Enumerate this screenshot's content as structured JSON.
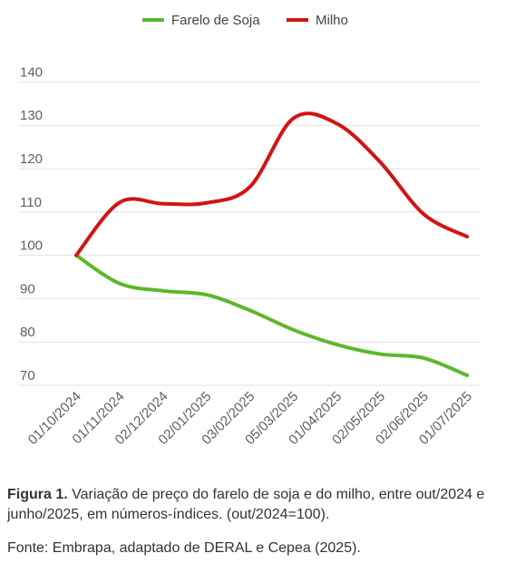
{
  "chart_data": {
    "type": "line",
    "categories": [
      "01/10/2024",
      "01/11/2024",
      "02/12/2024",
      "02/01/2025",
      "03/02/2025",
      "05/03/2025",
      "01/04/2025",
      "02/05/2025",
      "02/06/2025",
      "01/07/2025"
    ],
    "series": [
      {
        "name": "Farelo de Soja",
        "color": "#5cb82a",
        "values": [
          100,
          93.5,
          91.8,
          90.9,
          87.3,
          82.8,
          79.4,
          77.2,
          76.3,
          72.3
        ]
      },
      {
        "name": "Milho",
        "color": "#d41313",
        "values": [
          100,
          112.2,
          111.9,
          112.1,
          115.8,
          131.6,
          130.4,
          121.5,
          109.5,
          104.3
        ]
      }
    ],
    "yticks": [
      70,
      80,
      90,
      100,
      110,
      120,
      130,
      140
    ],
    "ylim": [
      65,
      140
    ],
    "grid": true,
    "legend": "top-center"
  },
  "caption": {
    "label": "Figura 1.",
    "text": " Variação de preço do farelo de soja e do milho, entre out/2024 e junho/2025, em números-índices. (out/2024=100)."
  },
  "source": "Fonte: Embrapa, adaptado de DERAL  e Cepea (2025)."
}
